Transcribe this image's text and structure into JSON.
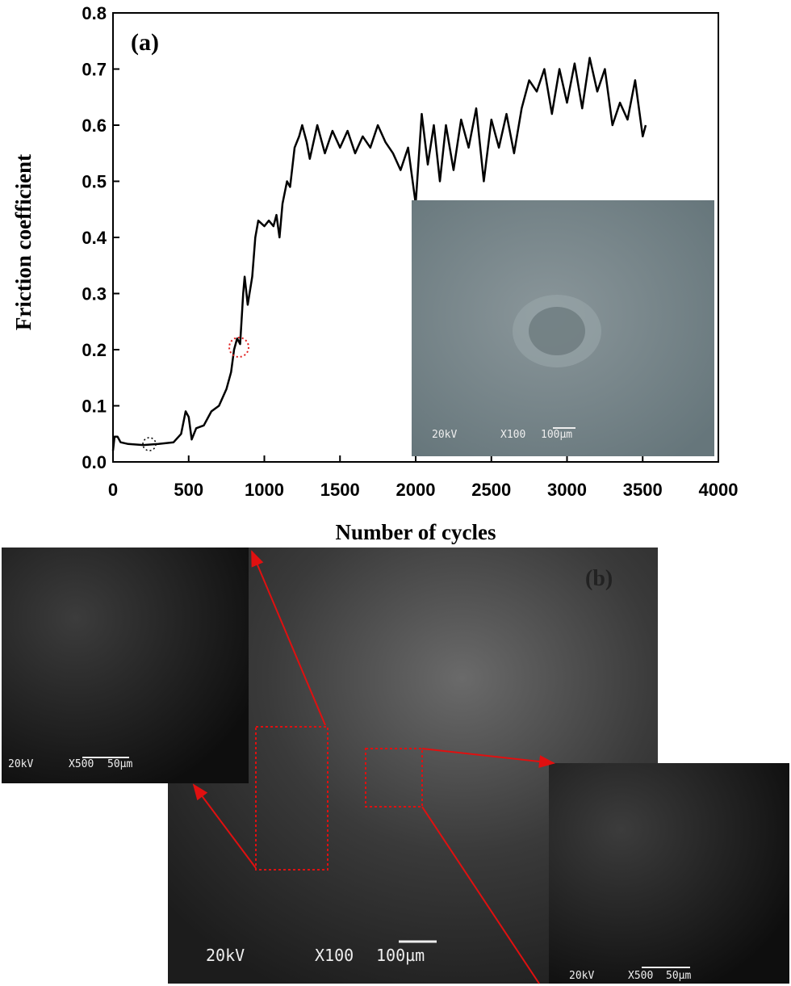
{
  "chart_data": {
    "type": "line",
    "annotations": [
      "(a)"
    ],
    "x_label": "Number of cycles",
    "y_label": "Friction coefficient",
    "x": [
      0,
      10,
      30,
      50,
      100,
      200,
      300,
      400,
      450,
      480,
      500,
      520,
      550,
      600,
      650,
      700,
      750,
      780,
      800,
      820,
      840,
      860,
      870,
      890,
      920,
      940,
      960,
      1000,
      1030,
      1060,
      1080,
      1100,
      1120,
      1150,
      1170,
      1200,
      1230,
      1250,
      1280,
      1300,
      1350,
      1400,
      1450,
      1500,
      1550,
      1600,
      1650,
      1700,
      1750,
      1800,
      1850,
      1900,
      1950,
      2000,
      2040,
      2080,
      2120,
      2160,
      2200,
      2250,
      2300,
      2350,
      2400,
      2450,
      2500,
      2550,
      2600,
      2650,
      2700,
      2750,
      2800,
      2850,
      2900,
      2950,
      3000,
      3050,
      3100,
      3150,
      3200,
      3250,
      3300,
      3350,
      3400,
      3450,
      3500,
      3520
    ],
    "series": [
      {
        "color": "#000000",
        "values": [
          0.02,
          0.045,
          0.045,
          0.035,
          0.032,
          0.03,
          0.032,
          0.035,
          0.05,
          0.09,
          0.08,
          0.04,
          0.06,
          0.065,
          0.09,
          0.1,
          0.13,
          0.16,
          0.2,
          0.22,
          0.21,
          0.3,
          0.33,
          0.28,
          0.33,
          0.4,
          0.43,
          0.42,
          0.43,
          0.42,
          0.44,
          0.4,
          0.46,
          0.5,
          0.49,
          0.56,
          0.58,
          0.6,
          0.57,
          0.54,
          0.6,
          0.55,
          0.59,
          0.56,
          0.59,
          0.55,
          0.58,
          0.56,
          0.6,
          0.57,
          0.55,
          0.52,
          0.56,
          0.46,
          0.62,
          0.53,
          0.6,
          0.5,
          0.6,
          0.52,
          0.61,
          0.56,
          0.63,
          0.5,
          0.61,
          0.56,
          0.62,
          0.55,
          0.63,
          0.68,
          0.66,
          0.7,
          0.62,
          0.7,
          0.64,
          0.71,
          0.63,
          0.72,
          0.66,
          0.7,
          0.6,
          0.64,
          0.61,
          0.68,
          0.58,
          0.6
        ]
      }
    ],
    "xlim": [
      0,
      4000
    ],
    "xticks": [
      0,
      500,
      1000,
      1500,
      2000,
      2500,
      3000,
      3500,
      4000
    ],
    "ylim": [
      0,
      0.8
    ],
    "yticks": [
      {
        "value": 0,
        "label": "0.0"
      },
      0.1,
      0.2,
      0.3,
      0.4,
      0.5,
      0.6,
      0.7,
      0.8
    ]
  },
  "micrographs": [
    {
      "labels": [
        "20kV",
        "X100",
        "100µm"
      ]
    },
    {
      "panel": "(b)",
      "labels": [
        "20kV",
        "X100",
        "100µm"
      ]
    },
    {
      "labels": [
        "20kV",
        "X500",
        "50µm"
      ]
    },
    {
      "labels": [
        "20kV",
        "X500",
        "50µm"
      ]
    }
  ]
}
